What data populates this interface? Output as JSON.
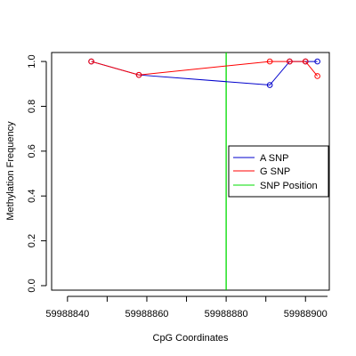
{
  "chart_data": {
    "type": "line",
    "xlabel": "CpG Coordinates",
    "ylabel": "Methylation Frequency",
    "xlim": [
      59988836,
      59988906
    ],
    "ylim": [
      -0.02,
      1.04
    ],
    "x_ticks": [
      59988840,
      59988860,
      59988880,
      59988900
    ],
    "x_tick_labels": [
      "59988840",
      "59988860",
      "59988880",
      "59988900"
    ],
    "y_ticks": [
      0.0,
      0.2,
      0.4,
      0.6,
      0.8,
      1.0
    ],
    "y_tick_labels": [
      "0.0",
      "0.2",
      "0.4",
      "0.6",
      "0.8",
      "1.0"
    ],
    "grid": false,
    "legend_position": "right",
    "series": [
      {
        "name": "A SNP",
        "color": "#0000cc",
        "points": [
          {
            "x": 59988846,
            "y": 1.0
          },
          {
            "x": 59988858,
            "y": 0.94
          },
          {
            "x": 59988891,
            "y": 0.895
          },
          {
            "x": 59988896,
            "y": 1.0
          },
          {
            "x": 59988900,
            "y": 1.0
          },
          {
            "x": 59988903,
            "y": 1.0
          }
        ]
      },
      {
        "name": "G SNP",
        "color": "#ff0000",
        "points": [
          {
            "x": 59988846,
            "y": 1.0
          },
          {
            "x": 59988858,
            "y": 0.94
          },
          {
            "x": 59988891,
            "y": 1.0
          },
          {
            "x": 59988896,
            "y": 1.0
          },
          {
            "x": 59988900,
            "y": 1.0
          },
          {
            "x": 59988903,
            "y": 0.935
          }
        ]
      }
    ],
    "snp_position": {
      "name": "SNP Position",
      "x": 59988880,
      "color": "#00dd00"
    },
    "legend": [
      "A SNP",
      "G SNP",
      "SNP Position"
    ]
  }
}
